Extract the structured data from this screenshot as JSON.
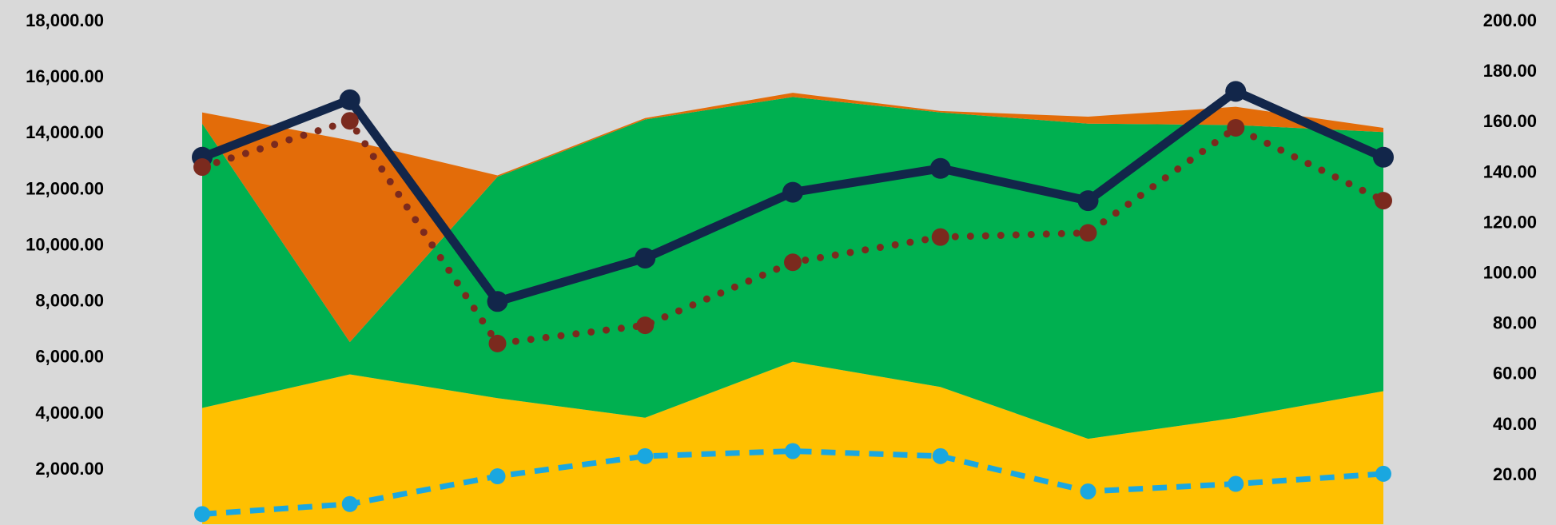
{
  "chart_data": {
    "type": "area",
    "background": "#d9d9d9",
    "categories_count": 9,
    "y_left": {
      "lim": [
        0,
        18000
      ],
      "ticks": [
        2000,
        4000,
        6000,
        8000,
        10000,
        12000,
        14000,
        16000,
        18000
      ],
      "tick_labels": [
        "2,000.00",
        "4,000.00",
        "6,000.00",
        "8,000.00",
        "10,000.00",
        "12,000.00",
        "14,000.00",
        "16,000.00",
        "18,000.00"
      ]
    },
    "y_right": {
      "lim": [
        0,
        200
      ],
      "ticks": [
        20,
        40,
        60,
        80,
        100,
        120,
        140,
        160,
        180,
        200
      ],
      "tick_labels": [
        "20.00",
        "40.00",
        "60.00",
        "80.00",
        "100.00",
        "120.00",
        "140.00",
        "160.00",
        "180.00",
        "200.00"
      ]
    },
    "stacked_area": [
      {
        "color": "#ffc000",
        "values": [
          4150,
          5350,
          4500,
          3800,
          5800,
          4900,
          3050,
          3800,
          4750
        ]
      },
      {
        "color": "#00b050",
        "values": [
          10150,
          1150,
          7900,
          10650,
          9450,
          9800,
          11250,
          10450,
          9250
        ]
      },
      {
        "color": "#e36c09",
        "values": [
          400,
          7200,
          50,
          50,
          150,
          50,
          250,
          650,
          150
        ]
      }
    ],
    "lines": [
      {
        "axis": "left",
        "style": "solid",
        "color": "#12264a",
        "values": [
          13100,
          15150,
          7950,
          9500,
          11850,
          12700,
          11550,
          15450,
          13100
        ]
      },
      {
        "axis": "left",
        "style": "dotted",
        "color": "#7b2a1e",
        "values": [
          12750,
          14400,
          6450,
          7100,
          9350,
          10250,
          10400,
          14150,
          11550
        ]
      },
      {
        "axis": "right",
        "style": "dashed",
        "color": "#1aa7e0",
        "values": [
          4,
          8,
          19,
          27,
          29,
          27,
          13,
          16,
          20
        ]
      }
    ],
    "grid": false,
    "legend": "none"
  }
}
